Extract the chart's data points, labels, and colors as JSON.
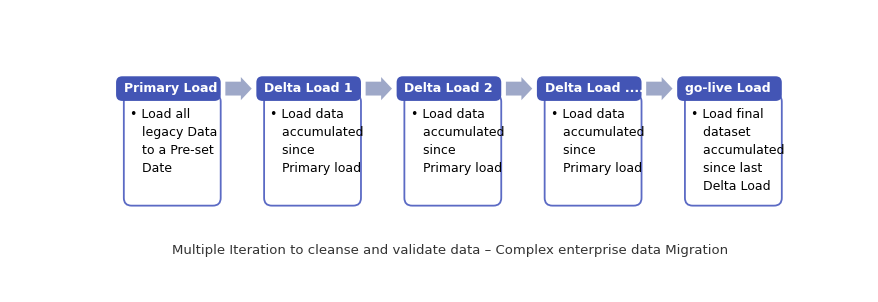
{
  "background_color": "#ffffff",
  "header_color": "#4355B5",
  "body_color": "#ffffff",
  "body_bg_color": "#EEF0FA",
  "header_text_color": "#ffffff",
  "body_text_color": "#000000",
  "arrow_color": "#9EA8C8",
  "border_color": "#5B6AC4",
  "boxes": [
    {
      "title": "Primary Load",
      "body": "• Load all\n   legacy Data\n   to a Pre-set\n   Date"
    },
    {
      "title": "Delta Load 1",
      "body": "• Load data\n   accumulated\n   since\n   Primary load"
    },
    {
      "title": "Delta Load 2",
      "body": "• Load data\n   accumulated\n   since\n   Primary load"
    },
    {
      "title": "Delta Load ....",
      "body": "• Load data\n   accumulated\n   since\n   Primary load"
    },
    {
      "title": "go-live Load",
      "body": "• Load final\n   dataset\n   accumulated\n   since last\n   Delta Load"
    }
  ],
  "footer_text": "Multiple Iteration to cleanse and validate data – Complex enterprise data Migration",
  "footer_fontsize": 9.5,
  "title_fontsize": 9,
  "body_fontsize": 9
}
